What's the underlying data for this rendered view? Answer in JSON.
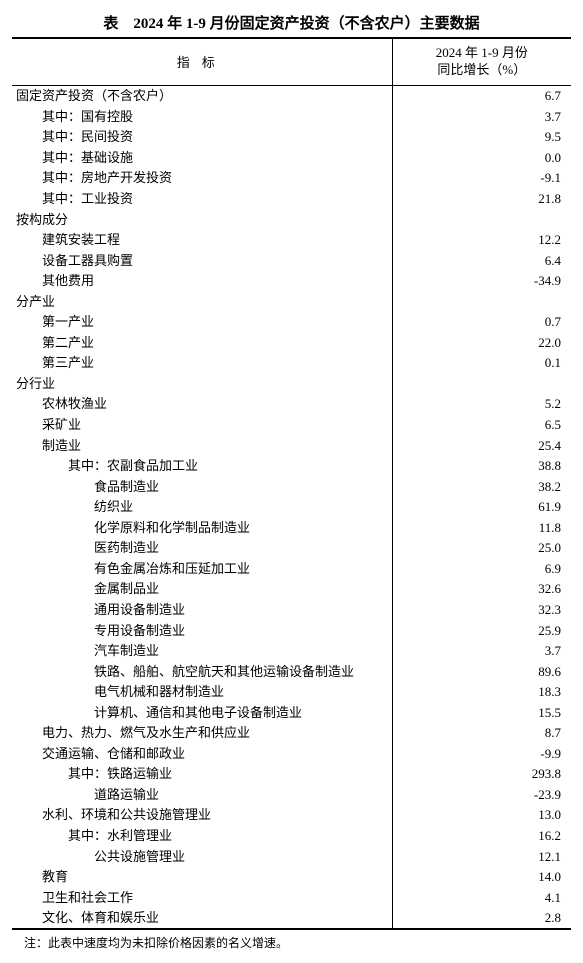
{
  "title": "表　2024 年 1-9 月份固定资产投资（不含农户）主要数据",
  "columns": {
    "indicator": "指标",
    "value_line1": "2024 年 1-9 月份",
    "value_line2": "同比增长（%）"
  },
  "rows": [
    {
      "label": "固定资产投资（不含农户）",
      "indent": 0,
      "value": "6.7"
    },
    {
      "label": "其中：国有控股",
      "indent": 1,
      "value": "3.7"
    },
    {
      "label": "其中：民间投资",
      "indent": 1,
      "value": "9.5"
    },
    {
      "label": "其中：基础设施",
      "indent": 1,
      "value": "0.0"
    },
    {
      "label": "其中：房地产开发投资",
      "indent": 1,
      "value": "-9.1"
    },
    {
      "label": "其中：工业投资",
      "indent": 1,
      "value": "21.8"
    },
    {
      "label": "按构成分",
      "indent": 0,
      "value": ""
    },
    {
      "label": "建筑安装工程",
      "indent": 1,
      "value": "12.2"
    },
    {
      "label": "设备工器具购置",
      "indent": 1,
      "value": "6.4"
    },
    {
      "label": "其他费用",
      "indent": 1,
      "value": "-34.9"
    },
    {
      "label": "分产业",
      "indent": 0,
      "value": ""
    },
    {
      "label": "第一产业",
      "indent": 1,
      "value": "0.7"
    },
    {
      "label": "第二产业",
      "indent": 1,
      "value": "22.0"
    },
    {
      "label": "第三产业",
      "indent": 1,
      "value": "0.1"
    },
    {
      "label": "分行业",
      "indent": 0,
      "value": ""
    },
    {
      "label": "农林牧渔业",
      "indent": 1,
      "value": "5.2"
    },
    {
      "label": "采矿业",
      "indent": 1,
      "value": "6.5"
    },
    {
      "label": "制造业",
      "indent": 1,
      "value": "25.4"
    },
    {
      "label": "其中：农副食品加工业",
      "indent": 2,
      "value": "38.8"
    },
    {
      "label": "食品制造业",
      "indent": 3,
      "value": "38.2"
    },
    {
      "label": "纺织业",
      "indent": 3,
      "value": "61.9"
    },
    {
      "label": "化学原料和化学制品制造业",
      "indent": 3,
      "value": "11.8"
    },
    {
      "label": "医药制造业",
      "indent": 3,
      "value": "25.0"
    },
    {
      "label": "有色金属冶炼和压延加工业",
      "indent": 3,
      "value": "6.9"
    },
    {
      "label": "金属制品业",
      "indent": 3,
      "value": "32.6"
    },
    {
      "label": "通用设备制造业",
      "indent": 3,
      "value": "32.3"
    },
    {
      "label": "专用设备制造业",
      "indent": 3,
      "value": "25.9"
    },
    {
      "label": "汽车制造业",
      "indent": 3,
      "value": "3.7"
    },
    {
      "label": "铁路、船舶、航空航天和其他运输设备制造业",
      "indent": 3,
      "value": "89.6"
    },
    {
      "label": "电气机械和器材制造业",
      "indent": 3,
      "value": "18.3"
    },
    {
      "label": "计算机、通信和其他电子设备制造业",
      "indent": 3,
      "value": "15.5"
    },
    {
      "label": "电力、热力、燃气及水生产和供应业",
      "indent": 1,
      "value": "8.7"
    },
    {
      "label": "交通运输、仓储和邮政业",
      "indent": 1,
      "value": "-9.9"
    },
    {
      "label": "其中：铁路运输业",
      "indent": 2,
      "value": "293.8"
    },
    {
      "label": "道路运输业",
      "indent": 3,
      "value": "-23.9"
    },
    {
      "label": "水利、环境和公共设施管理业",
      "indent": 1,
      "value": "13.0"
    },
    {
      "label": "其中：水利管理业",
      "indent": 2,
      "value": "16.2"
    },
    {
      "label": "公共设施管理业",
      "indent": 3,
      "value": "12.1"
    },
    {
      "label": "教育",
      "indent": 1,
      "value": "14.0"
    },
    {
      "label": "卫生和社会工作",
      "indent": 1,
      "value": "4.1"
    },
    {
      "label": "文化、体育和娱乐业",
      "indent": 1,
      "value": "2.8"
    }
  ],
  "footnote": "注：此表中速度均为未扣除价格因素的名义增速。"
}
